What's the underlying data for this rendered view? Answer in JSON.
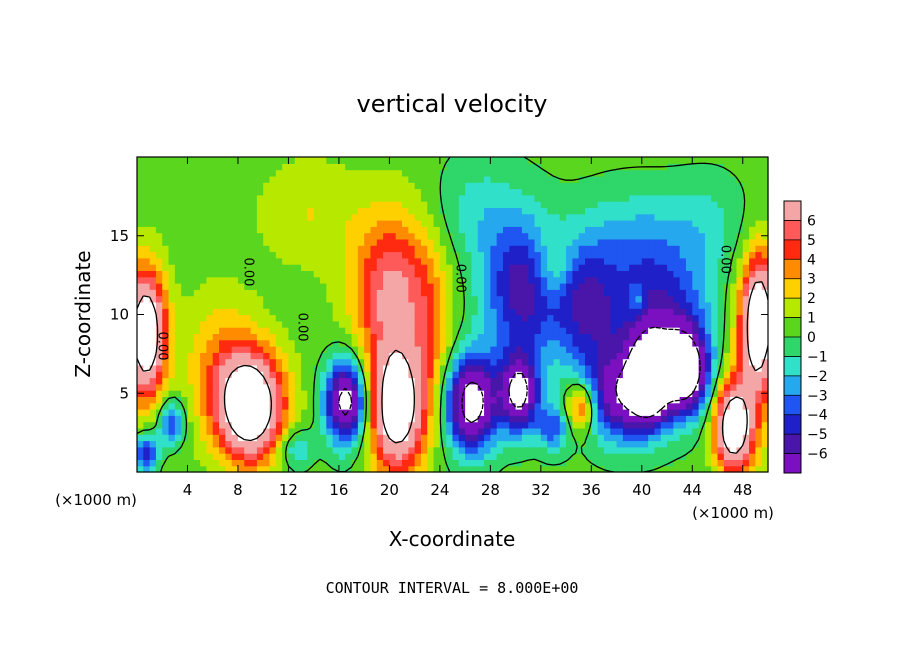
{
  "chart_data": {
    "type": "heatmap",
    "title": "vertical velocity",
    "xlabel": "X-coordinate",
    "ylabel": "Z-coordinate",
    "x_unit": "(×1000 m)",
    "y_unit": "(×1000 m)",
    "note": "CONTOUR INTERVAL = 8.000E+00",
    "xlim": [
      0,
      50
    ],
    "ylim": [
      0,
      20
    ],
    "x_ticks": [
      4,
      8,
      12,
      16,
      20,
      24,
      28,
      32,
      36,
      40,
      44,
      48
    ],
    "y_ticks": [
      5,
      10,
      15
    ],
    "colorbar": {
      "levels": [
        6,
        5,
        4,
        3,
        2,
        1,
        0,
        -1,
        -2,
        -3,
        -4,
        -5,
        -6
      ],
      "colors": [
        "#f4a6a6",
        "#ff5a5a",
        "#ff2a10",
        "#ff8c00",
        "#ffd000",
        "#b6e800",
        "#5ad61e",
        "#2fd66a",
        "#30e0c8",
        "#26a8ee",
        "#1f55f0",
        "#2020c8",
        "#4a16aa",
        "#7a10c0"
      ]
    },
    "contour_label": "0.00",
    "blobs": [
      {
        "x": 9.0,
        "z": 4.2,
        "rx": 2.6,
        "rz": 3.4,
        "v": 11
      },
      {
        "x": 20.6,
        "z": 4.0,
        "rx": 2.2,
        "rz": 4.0,
        "v": 10
      },
      {
        "x": 20.3,
        "z": 11.5,
        "rx": 3.2,
        "rz": 5.0,
        "v": 6
      },
      {
        "x": 0.7,
        "z": 8.8,
        "rx": 1.5,
        "rz": 4.0,
        "v": 11
      },
      {
        "x": 49.3,
        "z": 9.8,
        "rx": 1.3,
        "rz": 4.0,
        "v": 10
      },
      {
        "x": 47.2,
        "z": 2.8,
        "rx": 1.4,
        "rz": 2.6,
        "v": 10
      },
      {
        "x": 35.2,
        "z": 4.2,
        "rx": 1.2,
        "rz": 1.6,
        "v": 6
      },
      {
        "x": 16.6,
        "z": 4.5,
        "rx": 1.6,
        "rz": 2.6,
        "v": -10
      },
      {
        "x": 26.5,
        "z": 4.4,
        "rx": 2.0,
        "rz": 3.0,
        "v": -10
      },
      {
        "x": 30.3,
        "z": 5.0,
        "rx": 1.5,
        "rz": 2.4,
        "v": -9
      },
      {
        "x": 30.5,
        "z": 11.5,
        "rx": 3.0,
        "rz": 4.5,
        "v": -6
      },
      {
        "x": 35.5,
        "z": 10.5,
        "rx": 2.5,
        "rz": 3.8,
        "v": -5
      },
      {
        "x": 38.5,
        "z": 4.8,
        "rx": 3.2,
        "rz": 2.8,
        "v": -7
      },
      {
        "x": 41.5,
        "z": 9.0,
        "rx": 4.0,
        "rz": 4.5,
        "v": -6
      },
      {
        "x": 40.6,
        "z": 6.0,
        "rx": 1.3,
        "rz": 2.4,
        "v": -10
      },
      {
        "x": 43.4,
        "z": 6.4,
        "rx": 1.7,
        "rz": 2.4,
        "v": -10
      },
      {
        "x": 2.7,
        "z": 3.2,
        "rx": 1.0,
        "rz": 1.4,
        "v": -5
      },
      {
        "x": 0.7,
        "z": 1.2,
        "rx": 0.9,
        "rz": 1.2,
        "v": -6
      },
      {
        "x": 12.5,
        "z": 1.5,
        "rx": 1.3,
        "rz": 1.3,
        "v": -3
      },
      {
        "x": 33.0,
        "z": 2.8,
        "rx": 1.2,
        "rz": 1.5,
        "v": -4
      },
      {
        "x": 27.0,
        "z": 16.5,
        "rx": 3.5,
        "rz": 3.5,
        "v": -1.8
      },
      {
        "x": 39.5,
        "z": 14.5,
        "rx": 5.0,
        "rz": 3.5,
        "v": -2.5
      },
      {
        "x": 33.0,
        "z": 13.0,
        "rx": 1.5,
        "rz": 2.0,
        "v": 2.5
      },
      {
        "x": 39.7,
        "z": 10.8,
        "rx": 0.5,
        "rz": 0.9,
        "v": 3
      },
      {
        "x": 6.5,
        "z": 7.0,
        "rx": 3.0,
        "rz": 4.5,
        "v": 2.5
      },
      {
        "x": 23.5,
        "z": 8.5,
        "rx": 1.5,
        "rz": 5.0,
        "v": 2
      },
      {
        "x": 48.5,
        "z": 6.0,
        "rx": 2.0,
        "rz": 5.5,
        "v": 3
      },
      {
        "x": 45.5,
        "z": 16.0,
        "rx": 3.0,
        "rz": 3.0,
        "v": -1.3
      },
      {
        "x": 13.5,
        "z": 16.5,
        "rx": 4.0,
        "rz": 3.5,
        "v": 1.6
      }
    ]
  }
}
